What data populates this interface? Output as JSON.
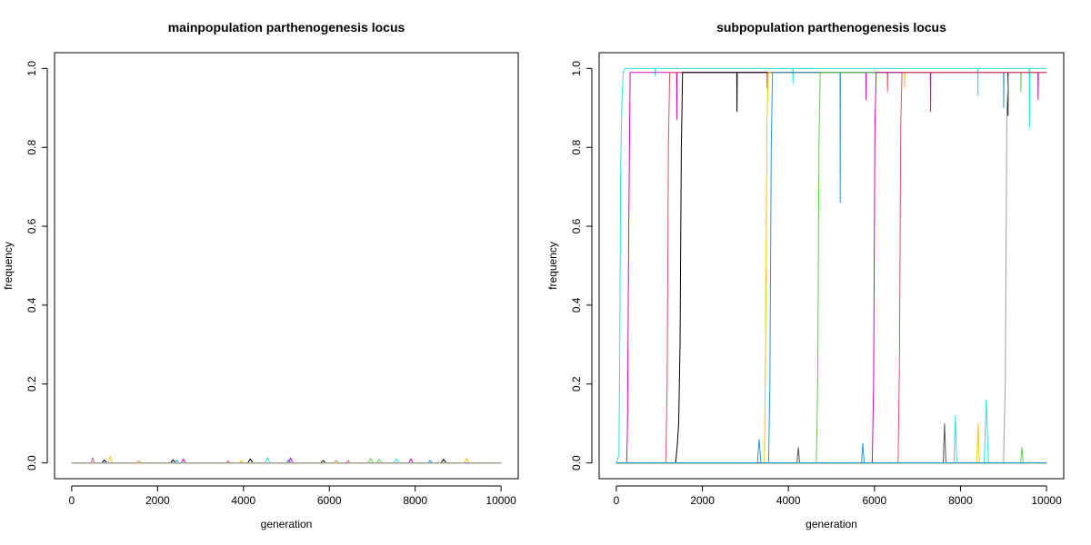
{
  "chart_data": [
    {
      "type": "line",
      "title": "mainpopulation parthenogenesis locus",
      "xlabel": "generation",
      "ylabel": "frequency",
      "xlim": [
        0,
        10000
      ],
      "ylim": [
        0,
        1
      ],
      "xticks": [
        0,
        2000,
        4000,
        6000,
        8000,
        10000
      ],
      "yticks": [
        0.0,
        0.2,
        0.4,
        0.6,
        0.8,
        1.0
      ],
      "xtick_labels": [
        "0",
        "2000",
        "4000",
        "6000",
        "8000",
        "10000"
      ],
      "ytick_labels": [
        "0.0",
        "0.2",
        "0.4",
        "0.6",
        "0.8",
        "1.0"
      ],
      "grid": false,
      "series": [
        {
          "color": "#000000",
          "x": [
            0,
            700,
            760,
            820,
            2300,
            2360,
            2420,
            4100,
            4160,
            4220,
            5800,
            5860,
            5920,
            8600,
            8660,
            8720,
            10000
          ],
          "y": [
            0,
            0,
            0.007,
            0,
            0,
            0.008,
            0,
            0,
            0.01,
            0,
            0,
            0.006,
            0,
            0,
            0.009,
            0,
            0
          ]
        },
        {
          "color": "#DF536B",
          "x": [
            0,
            450,
            490,
            530,
            3600,
            3640,
            3680,
            6400,
            6440,
            6480,
            10000
          ],
          "y": [
            0,
            0,
            0.012,
            0,
            0,
            0.005,
            0,
            0,
            0.006,
            0,
            0
          ]
        },
        {
          "color": "#61D04F",
          "x": [
            0,
            6900,
            6960,
            7020,
            7100,
            7160,
            7220,
            10000
          ],
          "y": [
            0,
            0,
            0.011,
            0,
            0,
            0.009,
            0,
            0
          ]
        },
        {
          "color": "#2297E6",
          "x": [
            0,
            2400,
            2450,
            2500,
            5000,
            5050,
            5100,
            8300,
            8350,
            8400,
            10000
          ],
          "y": [
            0,
            0,
            0.007,
            0,
            0,
            0.008,
            0,
            0,
            0.006,
            0,
            0
          ]
        },
        {
          "color": "#28E2E5",
          "x": [
            0,
            4500,
            4560,
            4620,
            7500,
            7560,
            7620,
            10000
          ],
          "y": [
            0,
            0,
            0.013,
            0,
            0,
            0.01,
            0,
            0
          ]
        },
        {
          "color": "#CD0BBC",
          "x": [
            0,
            2550,
            2600,
            2650,
            5050,
            5100,
            5150,
            7850,
            7900,
            7950,
            10000
          ],
          "y": [
            0,
            0,
            0.009,
            0,
            0,
            0.012,
            0,
            0,
            0.01,
            0,
            0
          ]
        },
        {
          "color": "#F5C710",
          "x": [
            0,
            850,
            900,
            950,
            3900,
            3950,
            4000,
            9150,
            9200,
            9250,
            10000
          ],
          "y": [
            0,
            0,
            0.016,
            0,
            0,
            0.006,
            0,
            0,
            0.011,
            0,
            0
          ]
        },
        {
          "color": "#9E9E9E",
          "x": [
            0,
            1500,
            1560,
            1620,
            6100,
            6160,
            6220,
            10000
          ],
          "y": [
            0,
            0,
            0.005,
            0,
            0,
            0.006,
            0,
            0
          ]
        }
      ]
    },
    {
      "type": "line",
      "title": "subpopulation parthenogenesis locus",
      "xlabel": "generation",
      "ylabel": "frequency",
      "xlim": [
        0,
        10000
      ],
      "ylim": [
        0,
        1
      ],
      "xticks": [
        0,
        2000,
        4000,
        6000,
        8000,
        10000
      ],
      "yticks": [
        0.0,
        0.2,
        0.4,
        0.6,
        0.8,
        1.0
      ],
      "xtick_labels": [
        "0",
        "2000",
        "4000",
        "6000",
        "8000",
        "10000"
      ],
      "ytick_labels": [
        "0.0",
        "0.2",
        "0.4",
        "0.6",
        "0.8",
        "1.0"
      ],
      "grid": false,
      "series": [
        {
          "color": "#28E2E5",
          "x": [
            0,
            60,
            80,
            100,
            130,
            160,
            200,
            900,
            905,
            910,
            4100,
            4105,
            4110,
            8400,
            8405,
            8410,
            9600,
            9605,
            9610,
            10000
          ],
          "y": [
            0,
            0.02,
            0.3,
            0.75,
            0.92,
            0.99,
            1,
            1,
            0.98,
            1,
            1,
            0.96,
            1,
            1,
            0.93,
            1,
            1,
            0.85,
            1,
            1
          ]
        },
        {
          "color": "#CD0BBC",
          "x": [
            0,
            240,
            260,
            290,
            320,
            1400,
            1405,
            1410,
            5800,
            5805,
            5810,
            7300,
            7305,
            7310,
            9800,
            9805,
            9810,
            10000
          ],
          "y": [
            0,
            0,
            0.1,
            0.6,
            0.99,
            0.99,
            0.87,
            0.99,
            0.99,
            0.92,
            0.99,
            0.99,
            0.89,
            0.99,
            0.99,
            0.92,
            0.99,
            0.99
          ]
        },
        {
          "color": "#DF536B",
          "x": [
            0,
            1150,
            1180,
            1210,
            1240,
            3500,
            3505,
            3510,
            6300,
            6305,
            6310,
            10000
          ],
          "y": [
            0,
            0,
            0.2,
            0.8,
            0.99,
            0.99,
            0.95,
            0.99,
            0.99,
            0.94,
            0.99,
            0.99
          ]
        },
        {
          "color": "#000000",
          "x": [
            0,
            1380,
            1420,
            1450,
            1480,
            1510,
            1540,
            2800,
            2805,
            2810,
            9100,
            9105,
            9110,
            10000
          ],
          "y": [
            0,
            0,
            0.05,
            0.1,
            0.3,
            0.8,
            0.99,
            0.99,
            0.89,
            0.99,
            0.99,
            0.88,
            0.99,
            0.99
          ]
        },
        {
          "color": "#F5C710",
          "x": [
            0,
            3440,
            3470,
            3500,
            3530,
            6700,
            6705,
            6710,
            10000
          ],
          "y": [
            0,
            0,
            0.3,
            0.85,
            0.99,
            0.99,
            0.95,
            0.99,
            0.99
          ]
        },
        {
          "color": "#2297E6",
          "x": [
            0,
            3540,
            3570,
            3600,
            3630,
            5200,
            5205,
            5210,
            9000,
            9005,
            9010,
            10000
          ],
          "y": [
            0,
            0,
            0.2,
            0.8,
            0.99,
            0.99,
            0.66,
            0.99,
            0.99,
            0.9,
            0.99,
            0.99
          ]
        },
        {
          "color": "#61D04F",
          "x": [
            0,
            4650,
            4680,
            4710,
            4740,
            9400,
            9405,
            9410,
            10000
          ],
          "y": [
            0,
            0,
            0.2,
            0.8,
            0.99,
            0.99,
            0.94,
            0.99,
            0.99
          ]
        },
        {
          "color": "#9E9E9E",
          "x": [
            0,
            9000,
            9040,
            9080,
            9120,
            10000
          ],
          "y": [
            0,
            0,
            0.2,
            0.9,
            0.99,
            0.99
          ]
        },
        {
          "color": "#CD0BBC",
          "x": [
            0,
            5950,
            5980,
            6010,
            6040,
            10000
          ],
          "y": [
            0,
            0,
            0.2,
            0.85,
            0.99,
            0.99
          ]
        },
        {
          "color": "#DF536B",
          "x": [
            0,
            6550,
            6580,
            6610,
            6640,
            10000
          ],
          "y": [
            0,
            0,
            0.25,
            0.85,
            0.99,
            0.99
          ]
        },
        {
          "color": "#28E2E5",
          "x": [
            0,
            7850,
            7880,
            7910,
            8550,
            8600,
            8650,
            10000
          ],
          "y": [
            0,
            0,
            0.12,
            0,
            0,
            0.16,
            0,
            0
          ]
        },
        {
          "color": "#F5C710",
          "x": [
            0,
            8380,
            8410,
            8440,
            10000
          ],
          "y": [
            0,
            0,
            0.1,
            0,
            0
          ]
        },
        {
          "color": "#61D04F",
          "x": [
            0,
            9400,
            9430,
            9460,
            10000
          ],
          "y": [
            0,
            0,
            0.04,
            0,
            0
          ]
        },
        {
          "color": "#555555",
          "x": [
            0,
            4200,
            4230,
            4260,
            7600,
            7630,
            7660,
            10000
          ],
          "y": [
            0,
            0,
            0.04,
            0,
            0,
            0.1,
            0,
            0
          ]
        },
        {
          "color": "#2297E6",
          "x": [
            0,
            3280,
            3320,
            3360,
            5700,
            5730,
            5760,
            10000
          ],
          "y": [
            0,
            0,
            0.06,
            0,
            0,
            0.05,
            0,
            0
          ]
        }
      ]
    }
  ]
}
